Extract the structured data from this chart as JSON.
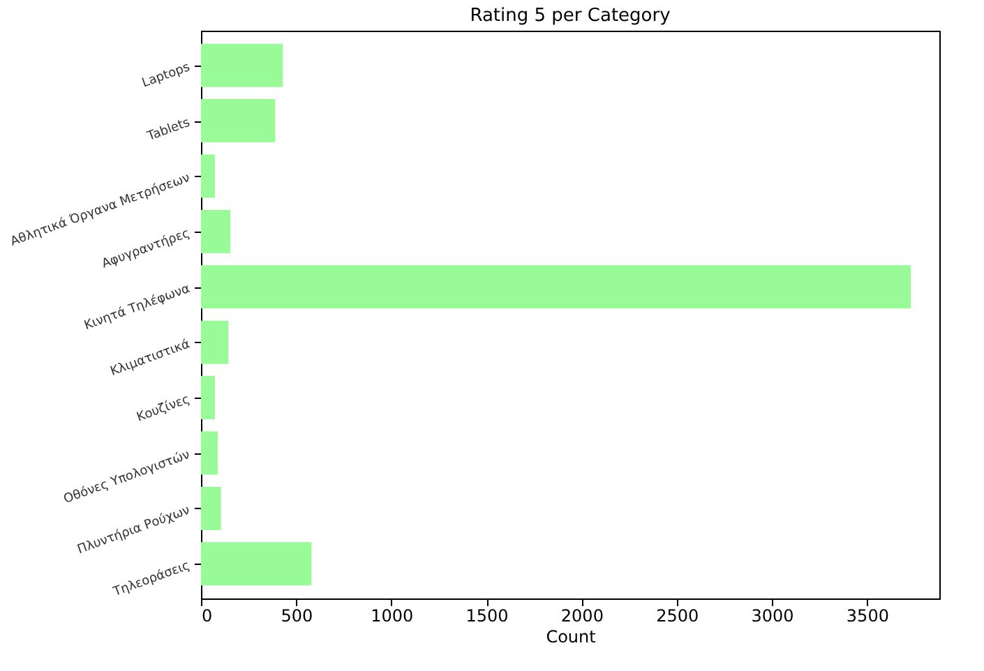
{
  "chart_data": {
    "type": "bar",
    "orientation": "horizontal",
    "title": "Rating 5 per Category",
    "xlabel": "Count",
    "categories": [
      "Laptops",
      "Tablets",
      "Αθλητικά Όργανα Μετρήσεων",
      "Αφυγραντήρες",
      "Κινητά Τηλέφωνα",
      "Κλιματιστικά",
      "Κουζίνες",
      "Οθόνες Υπολογιστών",
      "Πλυντήρια Ρούχων",
      "Τηλεοράσεις"
    ],
    "values": [
      430,
      390,
      73,
      154,
      3730,
      144,
      73,
      88,
      105,
      581
    ],
    "color": "#98fb98",
    "xlim": [
      0,
      3880
    ],
    "xticks": [
      0,
      500,
      1000,
      1500,
      2000,
      2500,
      3000,
      3500
    ],
    "grid": false
  }
}
